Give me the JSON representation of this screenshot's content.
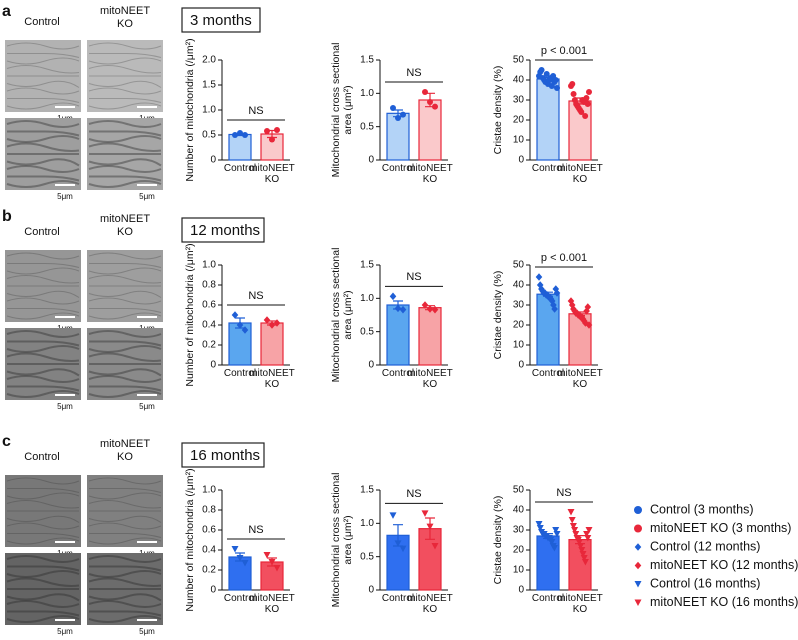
{
  "panels": [
    {
      "letter": "a",
      "period": "3 months",
      "control": "Control",
      "ko": "mitoNEET KO",
      "scales": [
        "1μm",
        "1μm",
        "5μm",
        "5μm"
      ]
    },
    {
      "letter": "b",
      "period": "12 months",
      "control": "Control",
      "ko": "mitoNEET KO",
      "scales": [
        "1μm",
        "1μm",
        "5μm",
        "5μm"
      ]
    },
    {
      "letter": "c",
      "period": "16 months",
      "control": "Control",
      "ko": "mitoNEET KO",
      "scales": [
        "1μm",
        "1μm",
        "5μm",
        "5μm"
      ]
    }
  ],
  "chart_data": [
    {
      "type": "bar",
      "ylabel": [
        "Number of mitochondria  (/μm²)"
      ],
      "categories": [
        "Control",
        "mitoNEET KO"
      ],
      "values": [
        0.51,
        0.52
      ],
      "errors": [
        0.02,
        0.07
      ],
      "points": [
        [
          0.5,
          0.54,
          0.5
        ],
        [
          0.58,
          0.41,
          0.6
        ]
      ],
      "colors": [
        "#1f5fd6",
        "#e8273a"
      ],
      "fills": [
        "#b3d3f7",
        "#fac9cb"
      ],
      "marker": "circle",
      "ylim": [
        0,
        2
      ],
      "yticks": [
        0,
        0.5,
        {
          "value": 1,
          "label": "1.0"
        },
        1.5,
        {
          "value": 2,
          "label": "2.0"
        }
      ],
      "annotation": "NS"
    },
    {
      "type": "bar",
      "ylabel": [
        "Mitochondrial cross sectional",
        "area  (μm²)"
      ],
      "categories": [
        "Control",
        "mitoNEET KO"
      ],
      "values": [
        0.7,
        0.9
      ],
      "errors": [
        0.05,
        0.1
      ],
      "points": [
        [
          0.78,
          0.63,
          0.68
        ],
        [
          1.02,
          0.87,
          0.8
        ]
      ],
      "colors": [
        "#1f5fd6",
        "#e8273a"
      ],
      "fills": [
        "#b3d3f7",
        "#fac9cb"
      ],
      "marker": "circle",
      "ylim": [
        0,
        1.5
      ],
      "yticks": [
        0,
        0.5,
        {
          "value": 1,
          "label": "1.0"
        },
        1.5
      ],
      "annotation": "NS"
    },
    {
      "type": "bar",
      "ylabel": [
        "Cristae density (%)"
      ],
      "categories": [
        "Control",
        "mitoNEET KO"
      ],
      "values": [
        40.5,
        29.5
      ],
      "errors": [
        0.8,
        1.5
      ],
      "points": [
        [
          42,
          44,
          45,
          41,
          40,
          39,
          43,
          38,
          40,
          41,
          37,
          42,
          39,
          40,
          36
        ],
        [
          37,
          38,
          33,
          30,
          28,
          27,
          26,
          25,
          24,
          30,
          29,
          22,
          31,
          28,
          34
        ]
      ],
      "colors": [
        "#1f5fd6",
        "#e8273a"
      ],
      "fills": [
        "#b3d3f7",
        "#fac9cb"
      ],
      "marker": "circle",
      "ylim": [
        0,
        50
      ],
      "yticks": [
        0,
        10,
        20,
        30,
        40,
        50
      ],
      "annotation": "p < 0.001"
    },
    {
      "type": "bar",
      "ylabel": [
        "Number of mitochondria  (/μm²)"
      ],
      "categories": [
        "Control",
        "mitoNEET KO"
      ],
      "values": [
        0.42,
        0.42
      ],
      "errors": [
        0.05,
        0.02
      ],
      "points": [
        [
          0.5,
          0.4,
          0.35
        ],
        [
          0.45,
          0.4,
          0.42
        ]
      ],
      "colors": [
        "#1f5fd6",
        "#e8273a"
      ],
      "fills": [
        "#5aa6ef",
        "#f7a3a6"
      ],
      "marker": "diamond",
      "ylim": [
        0,
        1
      ],
      "yticks": [
        0,
        0.2,
        0.4,
        0.6,
        0.8,
        {
          "value": 1,
          "label": "1.0"
        }
      ],
      "annotation": "NS"
    },
    {
      "type": "bar",
      "ylabel": [
        "Mitochondrial cross sectional",
        "area  (μm²)"
      ],
      "categories": [
        "Control",
        "mitoNEET KO"
      ],
      "values": [
        0.9,
        0.86
      ],
      "errors": [
        0.06,
        0.03
      ],
      "points": [
        [
          1.03,
          0.85,
          0.83
        ],
        [
          0.9,
          0.84,
          0.83
        ]
      ],
      "colors": [
        "#1f5fd6",
        "#e8273a"
      ],
      "fills": [
        "#5aa6ef",
        "#f7a3a6"
      ],
      "marker": "diamond",
      "ylim": [
        0,
        1.5
      ],
      "yticks": [
        0,
        0.5,
        {
          "value": 1,
          "label": "1.0"
        },
        1.5
      ],
      "annotation": "NS"
    },
    {
      "type": "bar",
      "ylabel": [
        "Cristae density (%)"
      ],
      "categories": [
        "Control",
        "mitoNEET KO"
      ],
      "values": [
        35.4,
        25.6
      ],
      "errors": [
        1,
        0.9
      ],
      "points": [
        [
          44,
          40,
          38,
          37,
          36,
          36,
          35,
          35,
          34,
          34,
          33,
          32,
          30,
          28,
          38,
          36
        ],
        [
          32,
          30,
          28,
          27,
          26,
          26,
          25,
          25,
          24,
          24,
          23,
          22,
          21,
          27,
          29,
          20
        ]
      ],
      "colors": [
        "#1f5fd6",
        "#e8273a"
      ],
      "fills": [
        "#5aa6ef",
        "#f7a3a6"
      ],
      "marker": "diamond",
      "ylim": [
        0,
        50
      ],
      "yticks": [
        0,
        10,
        20,
        30,
        40,
        50
      ],
      "annotation": "p < 0.001"
    },
    {
      "type": "bar",
      "ylabel": [
        "Number of mitochondria  (/μm²)"
      ],
      "categories": [
        "Control",
        "mitoNEET KO"
      ],
      "values": [
        0.33,
        0.28
      ],
      "errors": [
        0.04,
        0.04
      ],
      "points": [
        [
          0.41,
          0.32,
          0.27
        ],
        [
          0.35,
          0.28,
          0.22
        ]
      ],
      "colors": [
        "#1f5fd6",
        "#e8273a"
      ],
      "fills": [
        "#2f6ff0",
        "#f24f5f"
      ],
      "marker": "triangle",
      "ylim": [
        0,
        1
      ],
      "yticks": [
        0,
        0.2,
        0.4,
        0.6,
        0.8,
        {
          "value": 1,
          "label": "1.0"
        }
      ],
      "annotation": "NS"
    },
    {
      "type": "bar",
      "ylabel": [
        "Mitochondrial cross sectional",
        "area  (μm²)"
      ],
      "categories": [
        "Control",
        "mitoNEET KO"
      ],
      "values": [
        0.82,
        0.92
      ],
      "errors": [
        0.16,
        0.16
      ],
      "points": [
        [
          1.12,
          0.7,
          0.62
        ],
        [
          1.15,
          0.95,
          0.66
        ]
      ],
      "colors": [
        "#1f5fd6",
        "#e8273a"
      ],
      "fills": [
        "#2f6ff0",
        "#f24f5f"
      ],
      "marker": "triangle",
      "ylim": [
        0,
        1.5
      ],
      "yticks": [
        0,
        0.5,
        {
          "value": 1,
          "label": "1.0"
        },
        1.5
      ],
      "annotation": "NS"
    },
    {
      "type": "bar",
      "ylabel": [
        "Cristae density (%)"
      ],
      "categories": [
        "Control",
        "mitoNEET KO"
      ],
      "values": [
        27,
        25.2
      ],
      "errors": [
        1.2,
        2
      ],
      "points": [
        [
          33,
          31,
          29,
          28,
          28,
          27,
          27,
          26,
          26,
          25,
          24,
          22,
          21,
          30,
          28
        ],
        [
          39,
          35,
          32,
          30,
          28,
          26,
          25,
          24,
          22,
          20,
          18,
          16,
          14,
          28,
          26,
          30
        ]
      ],
      "colors": [
        "#1f5fd6",
        "#e8273a"
      ],
      "fills": [
        "#2f6ff0",
        "#f24f5f"
      ],
      "marker": "triangle",
      "ylim": [
        0,
        50
      ],
      "yticks": [
        0,
        10,
        20,
        30,
        40,
        50
      ],
      "annotation": "NS"
    }
  ],
  "legend": {
    "entries": [
      {
        "label": "Control (3 months)",
        "color": "#1f5fd6",
        "marker": "circle"
      },
      {
        "label": "mitoNEET KO (3 months)",
        "color": "#e8273a",
        "marker": "circle"
      },
      {
        "label": "Control (12 months)",
        "color": "#1f5fd6",
        "marker": "diamond"
      },
      {
        "label": "mitoNEET KO (12 months)",
        "color": "#e8273a",
        "marker": "diamond"
      },
      {
        "label": "Control (16 months)",
        "color": "#1f5fd6",
        "marker": "triangle"
      },
      {
        "label": "mitoNEET KO (16 months)",
        "color": "#e8273a",
        "marker": "triangle"
      }
    ]
  }
}
